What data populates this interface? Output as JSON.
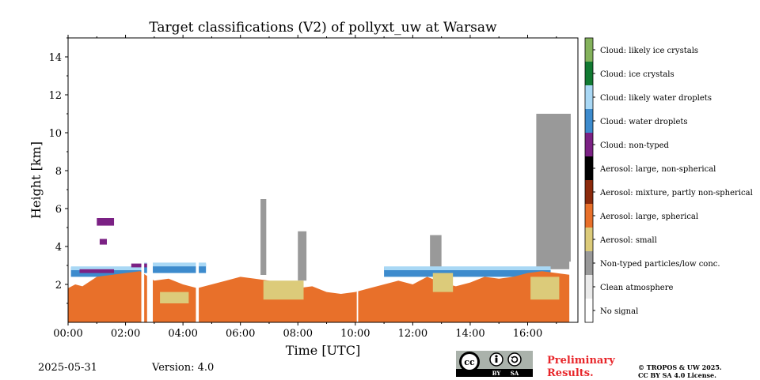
{
  "chart_data": {
    "type": "heatmap",
    "title": "Target classifications (V2) of pollyxt_uw at Warsaw",
    "xlabel": "Time [UTC]",
    "ylabel": "Height [km]",
    "xlim_hours": [
      0,
      17.75
    ],
    "ylim_km": [
      0,
      15
    ],
    "x_ticks": [
      "00:00",
      "02:00",
      "04:00",
      "06:00",
      "08:00",
      "10:00",
      "12:00",
      "14:00",
      "16:00"
    ],
    "y_ticks": [
      "2",
      "4",
      "6",
      "8",
      "10",
      "12",
      "14"
    ],
    "legend": [
      {
        "label": "Cloud: likely ice crystals",
        "color": "#84b25c"
      },
      {
        "label": "Cloud: ice crystals",
        "color": "#127a32"
      },
      {
        "label": "Cloud: likely water droplets",
        "color": "#a9d8f5"
      },
      {
        "label": "Cloud: water droplets",
        "color": "#3d8bcd"
      },
      {
        "label": "Cloud: non-typed",
        "color": "#7b2184"
      },
      {
        "label": "Aerosol: large, non-spherical",
        "color": "#000000"
      },
      {
        "label": "Aerosol: mixture, partly non-spherical",
        "color": "#8b2a0c"
      },
      {
        "label": "Aerosol: large, spherical",
        "color": "#e8702a"
      },
      {
        "label": "Aerosol: small",
        "color": "#dccb7a"
      },
      {
        "label": "Non-typed particles/low conc.",
        "color": "#999999"
      },
      {
        "label": "Clean atmosphere",
        "color": "#ebebeb"
      },
      {
        "label": "No signal",
        "color": "#ffffff"
      }
    ],
    "layers": {
      "aerosol_large_spherical_top_km": [
        [
          0.0,
          1.8
        ],
        [
          0.25,
          2.0
        ],
        [
          0.5,
          1.9
        ],
        [
          1.0,
          2.4
        ],
        [
          1.5,
          2.5
        ],
        [
          2.0,
          2.6
        ],
        [
          2.5,
          2.7
        ],
        [
          3.0,
          2.2
        ],
        [
          3.5,
          2.3
        ],
        [
          4.0,
          2.0
        ],
        [
          4.5,
          1.8
        ],
        [
          5.0,
          2.0
        ],
        [
          5.5,
          2.2
        ],
        [
          6.0,
          2.4
        ],
        [
          6.5,
          2.3
        ],
        [
          7.0,
          2.2
        ],
        [
          7.5,
          2.0
        ],
        [
          8.0,
          1.8
        ],
        [
          8.5,
          1.9
        ],
        [
          9.0,
          1.6
        ],
        [
          9.5,
          1.5
        ],
        [
          10.0,
          1.6
        ],
        [
          10.5,
          1.8
        ],
        [
          11.0,
          2.0
        ],
        [
          11.5,
          2.2
        ],
        [
          12.0,
          2.0
        ],
        [
          12.5,
          2.4
        ],
        [
          13.0,
          2.1
        ],
        [
          13.5,
          1.9
        ],
        [
          14.0,
          2.1
        ],
        [
          14.5,
          2.4
        ],
        [
          15.0,
          2.3
        ],
        [
          15.5,
          2.4
        ],
        [
          16.0,
          2.6
        ],
        [
          16.5,
          2.7
        ],
        [
          17.0,
          2.6
        ],
        [
          17.5,
          2.5
        ]
      ],
      "aerosol_small_patches": [
        {
          "t0": 3.2,
          "t1": 4.2,
          "h0": 1.0,
          "h1": 1.6
        },
        {
          "t0": 6.8,
          "t1": 8.2,
          "h0": 1.2,
          "h1": 2.2
        },
        {
          "t0": 12.7,
          "t1": 13.4,
          "h0": 1.6,
          "h1": 2.6
        },
        {
          "t0": 16.1,
          "t1": 17.1,
          "h0": 1.2,
          "h1": 2.4
        }
      ],
      "water_cloud_tops": [
        {
          "t0": 0.1,
          "t1": 2.6,
          "h0": 2.4,
          "h1": 2.9
        },
        {
          "t0": 2.6,
          "t1": 4.8,
          "h0": 2.6,
          "h1": 3.1
        },
        {
          "t0": 11.0,
          "t1": 16.8,
          "h0": 2.4,
          "h1": 2.9
        }
      ],
      "non_typed_cloud_patches": [
        {
          "t0": 1.0,
          "t1": 1.6,
          "h0": 5.1,
          "h1": 5.5
        },
        {
          "t0": 1.1,
          "t1": 1.35,
          "h0": 4.1,
          "h1": 4.4
        },
        {
          "t0": 0.4,
          "t1": 1.6,
          "h0": 2.6,
          "h1": 2.8
        },
        {
          "t0": 2.2,
          "t1": 2.8,
          "h0": 2.9,
          "h1": 3.1
        }
      ],
      "non_typed_particles_columns": [
        {
          "t0": 6.7,
          "t1": 6.9,
          "h0": 2.5,
          "h1": 6.5
        },
        {
          "t0": 8.0,
          "t1": 8.3,
          "h0": 2.2,
          "h1": 4.8
        },
        {
          "t0": 12.6,
          "t1": 13.0,
          "h0": 2.5,
          "h1": 4.6
        },
        {
          "t0": 16.3,
          "t1": 17.5,
          "h0": 2.8,
          "h1": 11.0
        }
      ],
      "no_signal_gaps_hours": [
        [
          2.55,
          2.65
        ],
        [
          2.75,
          2.95
        ],
        [
          4.45,
          4.55
        ],
        [
          10.05,
          10.1
        ],
        [
          17.45,
          17.6
        ]
      ]
    }
  },
  "footer": {
    "date": "2025-05-31",
    "version": "Version: 4.0",
    "preliminary_line1": "Preliminary",
    "preliminary_line2": "Results.",
    "copyright_line1": "© TROPOS & UW 2025.",
    "copyright_line2": "CC BY SA 4.0 License.",
    "cc_badge_by": "BY",
    "cc_badge_sa": "SA"
  }
}
